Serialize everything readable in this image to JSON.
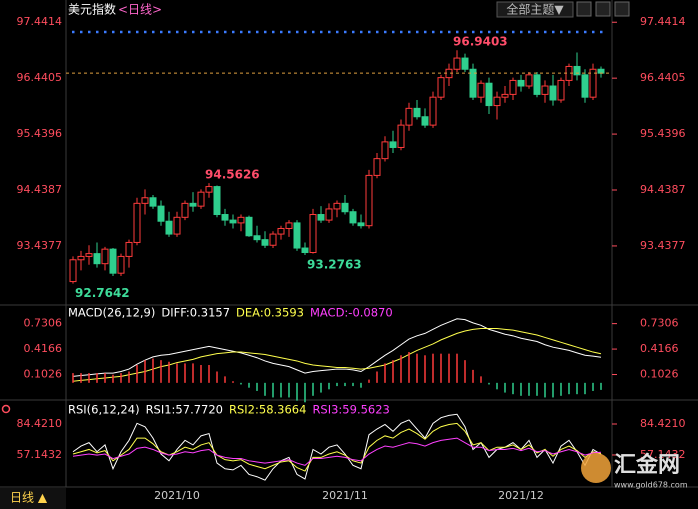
{
  "header": {
    "title": "美元指数",
    "period": "<日线>",
    "theme_button": "全部主题▼",
    "footer_period": "日线 ▲"
  },
  "watermark": {
    "brand": "汇金网",
    "url": "www.gold678.com"
  },
  "chart_data": [
    {
      "type": "candlestick",
      "up_color": "#ff3b3b",
      "down_color": "#2fcf8e",
      "tick_color": "#ff4d5e",
      "categories": [
        null,
        null,
        null,
        null,
        null,
        null,
        null,
        null,
        null,
        null,
        null,
        null,
        null,
        "2021/10",
        null,
        null,
        null,
        null,
        null,
        null,
        null,
        null,
        null,
        null,
        null,
        null,
        null,
        null,
        null,
        null,
        null,
        null,
        null,
        null,
        "2021/11",
        null,
        null,
        null,
        null,
        null,
        null,
        null,
        null,
        null,
        null,
        null,
        null,
        null,
        null,
        null,
        null,
        null,
        null,
        null,
        null,
        null,
        "2021/12",
        null,
        null,
        null,
        null,
        null,
        null,
        null,
        null,
        null,
        null
      ],
      "open": [
        92.8,
        93.19,
        93.25,
        93.3,
        93.12,
        93.38,
        92.95,
        93.25,
        93.5,
        94.2,
        94.3,
        94.15,
        93.88,
        93.65,
        93.95,
        94.2,
        94.15,
        94.4,
        94.5,
        94.0,
        93.9,
        93.85,
        93.95,
        93.62,
        93.55,
        93.45,
        93.65,
        93.75,
        93.85,
        93.4,
        93.32,
        94.0,
        93.9,
        94.1,
        94.2,
        94.05,
        93.85,
        93.8,
        94.7,
        95.0,
        95.3,
        95.2,
        95.6,
        95.9,
        95.75,
        95.6,
        96.1,
        96.45,
        96.6,
        96.8,
        96.6,
        96.1,
        96.35,
        95.95,
        96.1,
        96.15,
        96.4,
        96.3,
        96.5,
        96.15,
        96.3,
        96.05,
        96.4,
        96.65,
        96.5,
        96.1,
        96.6
      ],
      "high": [
        93.25,
        93.35,
        93.45,
        93.5,
        93.42,
        93.4,
        93.3,
        93.55,
        94.3,
        94.45,
        94.35,
        94.25,
        94.05,
        94.05,
        94.25,
        94.4,
        94.45,
        94.5626,
        94.52,
        94.1,
        94.0,
        94.0,
        93.98,
        93.8,
        93.7,
        93.7,
        93.8,
        93.9,
        93.9,
        93.5,
        94.1,
        94.15,
        94.2,
        94.25,
        94.35,
        94.1,
        94.0,
        94.8,
        95.1,
        95.4,
        95.5,
        95.7,
        96.0,
        96.05,
        95.9,
        96.2,
        96.5,
        96.7,
        96.9403,
        96.88,
        96.7,
        96.4,
        96.45,
        96.2,
        96.3,
        96.45,
        96.5,
        96.55,
        96.55,
        96.4,
        96.5,
        96.45,
        96.7,
        96.9,
        96.6,
        96.7,
        96.65
      ],
      "low": [
        92.7642,
        93.0,
        93.1,
        93.05,
        93.0,
        92.9,
        92.9,
        93.05,
        93.45,
        94.0,
        94.1,
        93.8,
        93.6,
        93.6,
        93.9,
        94.05,
        94.1,
        94.3,
        93.95,
        93.8,
        93.75,
        93.7,
        93.6,
        93.5,
        93.4,
        93.4,
        93.55,
        93.6,
        93.35,
        93.2763,
        93.3,
        93.85,
        93.85,
        93.95,
        94.0,
        93.8,
        93.75,
        93.75,
        94.65,
        94.95,
        95.1,
        95.15,
        95.5,
        95.7,
        95.55,
        95.55,
        96.05,
        96.3,
        96.55,
        96.55,
        96.05,
        96.0,
        95.8,
        95.7,
        96.0,
        96.05,
        96.2,
        96.25,
        96.1,
        96.0,
        95.95,
        96.0,
        96.3,
        96.4,
        96.0,
        96.05,
        96.45
      ],
      "close": [
        93.19,
        93.25,
        93.3,
        93.12,
        93.38,
        92.95,
        93.25,
        93.5,
        94.2,
        94.3,
        94.15,
        93.88,
        93.65,
        93.95,
        94.2,
        94.15,
        94.4,
        94.5,
        94.0,
        93.9,
        93.85,
        93.95,
        93.62,
        93.55,
        93.45,
        93.65,
        93.75,
        93.85,
        93.4,
        93.32,
        94.0,
        93.9,
        94.1,
        94.2,
        94.05,
        93.85,
        93.8,
        94.7,
        95.0,
        95.3,
        95.2,
        95.6,
        95.9,
        95.75,
        95.6,
        96.1,
        96.45,
        96.6,
        96.8,
        96.6,
        96.1,
        96.35,
        95.95,
        96.1,
        96.15,
        96.4,
        96.3,
        96.5,
        96.15,
        96.3,
        96.05,
        96.4,
        96.65,
        96.5,
        96.1,
        96.6,
        96.53
      ],
      "annotations": [
        "96.9403",
        "94.5626",
        "93.2763",
        "92.7642"
      ],
      "ylim": [
        92.47,
        97.75
      ],
      "yticks": [
        97.4414,
        96.4405,
        95.4396,
        94.4387,
        93.4377
      ]
    },
    {
      "type": "macd",
      "legend": [
        {
          "text": "MACD(26,12,9)",
          "color": "#ffffff"
        },
        {
          "text": "DIFF:0.3157",
          "color": "#ffffff"
        },
        {
          "text": "DEA:0.3593",
          "color": "#ffff4d"
        },
        {
          "text": "MACD:-0.0870",
          "color": "#ff40ff"
        }
      ],
      "tick_color": "#ff4d5e",
      "ylim": [
        -0.15,
        0.8
      ],
      "yticks": [
        0.7306,
        0.4166,
        0.1026
      ],
      "series": [
        {
          "color": "#ffffff",
          "values": [
            0.08,
            0.09,
            0.1,
            0.11,
            0.12,
            0.12,
            0.14,
            0.17,
            0.23,
            0.28,
            0.32,
            0.34,
            0.35,
            0.37,
            0.39,
            0.41,
            0.43,
            0.45,
            0.43,
            0.41,
            0.39,
            0.37,
            0.34,
            0.31,
            0.27,
            0.24,
            0.22,
            0.2,
            0.16,
            0.12,
            0.14,
            0.15,
            0.16,
            0.17,
            0.17,
            0.16,
            0.14,
            0.2,
            0.27,
            0.34,
            0.4,
            0.47,
            0.54,
            0.58,
            0.61,
            0.66,
            0.71,
            0.75,
            0.79,
            0.78,
            0.74,
            0.71,
            0.66,
            0.63,
            0.6,
            0.58,
            0.55,
            0.53,
            0.51,
            0.47,
            0.44,
            0.42,
            0.4,
            0.37,
            0.34,
            0.33,
            0.3157
          ]
        },
        {
          "color": "#ffff4d",
          "values": [
            0.02,
            0.03,
            0.04,
            0.05,
            0.06,
            0.07,
            0.08,
            0.1,
            0.12,
            0.14,
            0.17,
            0.2,
            0.22,
            0.25,
            0.27,
            0.29,
            0.32,
            0.34,
            0.36,
            0.37,
            0.38,
            0.38,
            0.37,
            0.36,
            0.35,
            0.33,
            0.31,
            0.29,
            0.27,
            0.24,
            0.22,
            0.21,
            0.2,
            0.19,
            0.19,
            0.18,
            0.17,
            0.18,
            0.2,
            0.22,
            0.26,
            0.3,
            0.35,
            0.4,
            0.44,
            0.48,
            0.53,
            0.57,
            0.61,
            0.64,
            0.66,
            0.67,
            0.67,
            0.67,
            0.66,
            0.65,
            0.63,
            0.61,
            0.59,
            0.56,
            0.53,
            0.5,
            0.47,
            0.44,
            0.41,
            0.38,
            0.3593
          ]
        },
        {
          "type": "bar",
          "color": "#ff3b3b",
          "down_color": "#2fcf8e",
          "values": [
            0.12,
            0.12,
            0.12,
            0.12,
            0.12,
            0.1,
            0.12,
            0.14,
            0.22,
            0.28,
            0.3,
            0.28,
            0.26,
            0.24,
            0.24,
            0.24,
            0.22,
            0.22,
            0.14,
            0.08,
            0.02,
            -0.02,
            -0.06,
            -0.1,
            -0.16,
            -0.18,
            -0.18,
            -0.18,
            -0.22,
            -0.24,
            -0.16,
            -0.12,
            -0.08,
            -0.04,
            -0.04,
            -0.04,
            -0.06,
            0.04,
            0.14,
            0.24,
            0.28,
            0.34,
            0.38,
            0.36,
            0.34,
            0.36,
            0.36,
            0.36,
            0.36,
            0.28,
            0.16,
            0.08,
            -0.02,
            -0.08,
            -0.12,
            -0.14,
            -0.16,
            -0.16,
            -0.16,
            -0.18,
            -0.18,
            -0.16,
            -0.14,
            -0.14,
            -0.14,
            -0.1,
            -0.087
          ]
        }
      ]
    },
    {
      "type": "line",
      "legend": [
        {
          "text": "RSI(6,12,24)",
          "color": "#ffffff"
        },
        {
          "text": "RSI1:57.7720",
          "color": "#ffffff"
        },
        {
          "text": "RSI2:58.3664",
          "color": "#ffff4d"
        },
        {
          "text": "RSI3:59.5623",
          "color": "#ff40ff"
        }
      ],
      "tick_color": "#ff4d5e",
      "ylim": [
        30.7,
        103.8
      ],
      "yticks": [
        {
          "value": 84.421,
          "label": "84.4210"
        },
        57.1432
      ],
      "series": [
        {
          "color": "#ffffff",
          "values": [
            60,
            65,
            68,
            60,
            66,
            45,
            60,
            70,
            85,
            82,
            72,
            58,
            52,
            62,
            70,
            66,
            74,
            76,
            50,
            45,
            44,
            48,
            40,
            38,
            35,
            45,
            52,
            55,
            40,
            36,
            62,
            58,
            64,
            66,
            58,
            48,
            45,
            75,
            80,
            84,
            78,
            85,
            88,
            80,
            72,
            85,
            90,
            92,
            93,
            82,
            62,
            68,
            55,
            62,
            64,
            68,
            62,
            70,
            55,
            62,
            50,
            65,
            70,
            60,
            48,
            62,
            57.772
          ]
        },
        {
          "color": "#ffff4d",
          "values": [
            58,
            60,
            62,
            59,
            61,
            52,
            57,
            62,
            72,
            72,
            67,
            60,
            57,
            60,
            64,
            62,
            66,
            68,
            57,
            53,
            52,
            53,
            49,
            47,
            45,
            48,
            51,
            52,
            46,
            43,
            55,
            55,
            58,
            60,
            57,
            52,
            50,
            64,
            70,
            74,
            72,
            77,
            80,
            76,
            71,
            78,
            82,
            84,
            85,
            78,
            66,
            68,
            61,
            64,
            64,
            66,
            62,
            66,
            59,
            62,
            56,
            62,
            65,
            61,
            55,
            60,
            58.3664
          ]
        },
        {
          "color": "#ff40ff",
          "values": [
            56,
            57,
            58,
            57,
            58,
            54,
            56,
            58,
            63,
            64,
            62,
            59,
            57,
            58,
            60,
            59,
            61,
            62,
            57,
            55,
            54,
            54,
            52,
            51,
            50,
            51,
            52,
            53,
            50,
            48,
            54,
            54,
            55,
            56,
            55,
            53,
            52,
            58,
            62,
            65,
            64,
            66,
            68,
            67,
            65,
            68,
            70,
            71,
            72,
            68,
            64,
            64,
            61,
            62,
            62,
            63,
            61,
            63,
            60,
            61,
            58,
            60,
            62,
            60,
            57,
            59,
            59.5623
          ]
        }
      ]
    }
  ]
}
